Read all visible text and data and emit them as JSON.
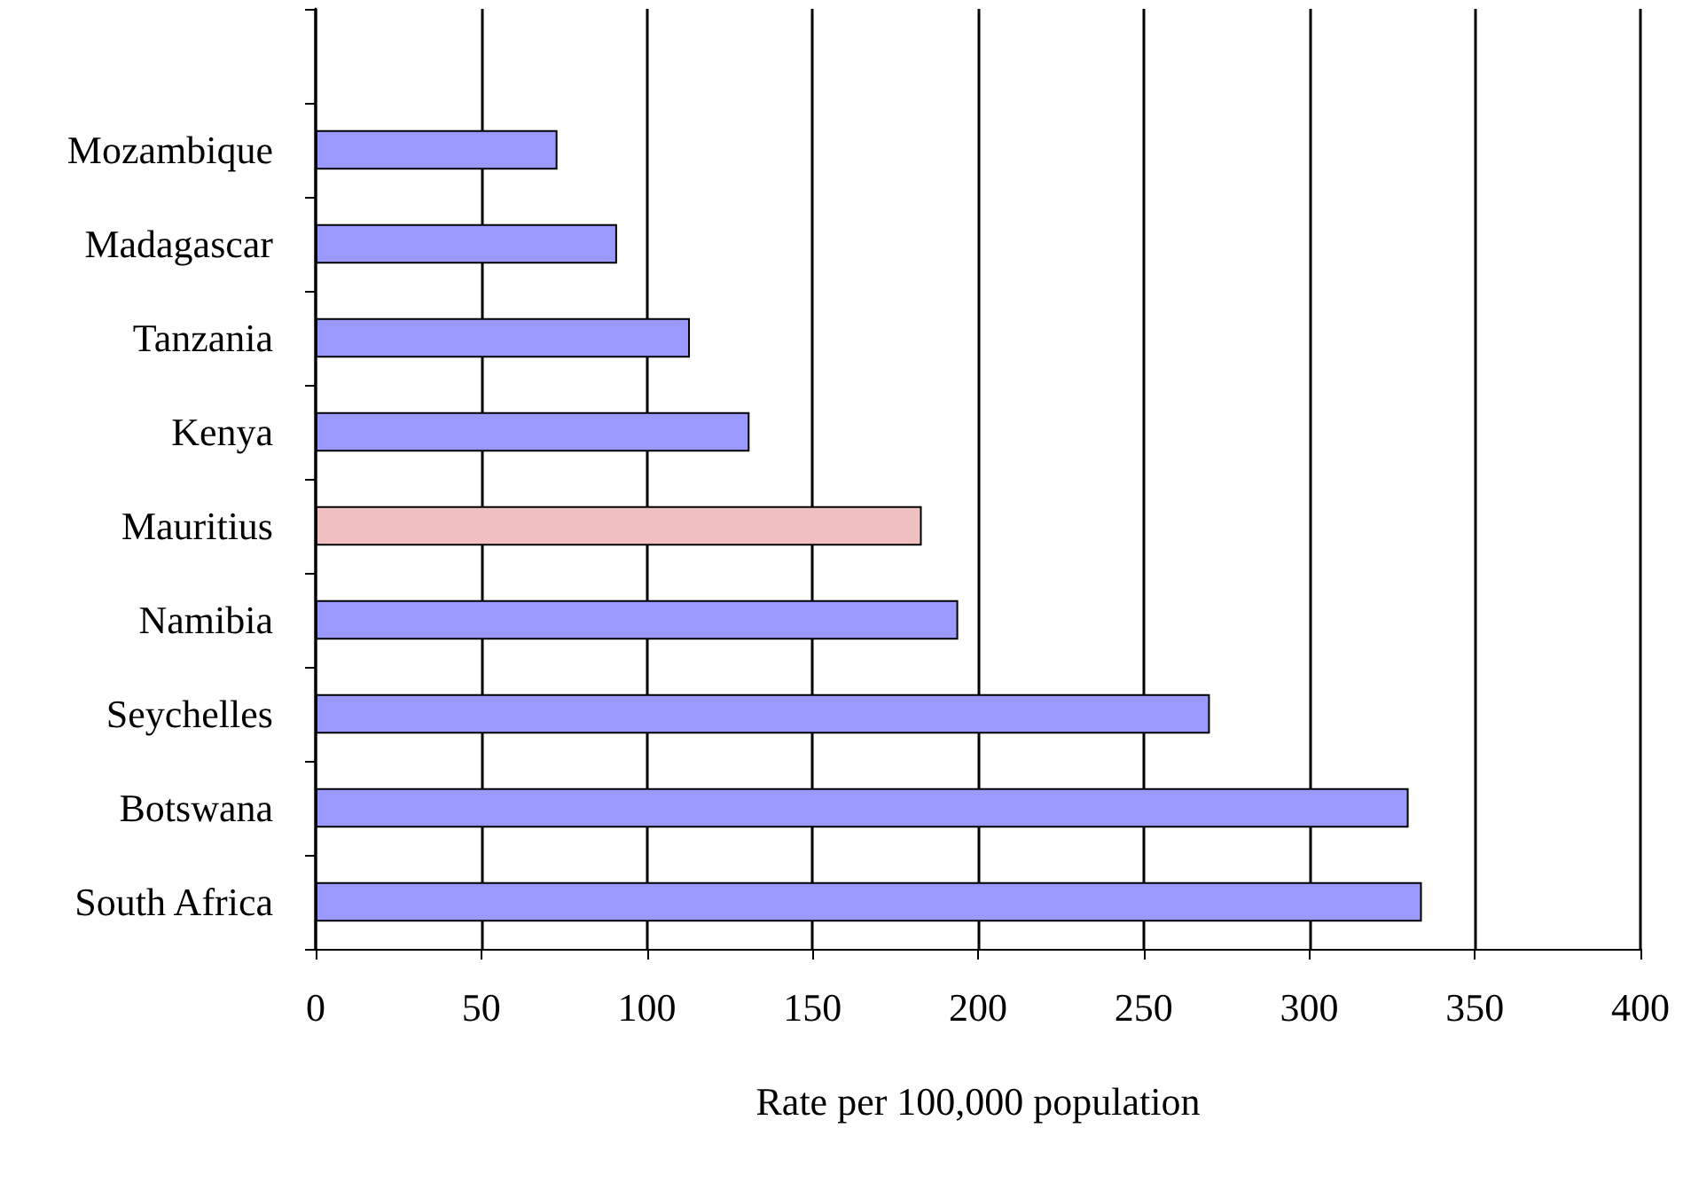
{
  "chart_data": {
    "type": "bar",
    "orientation": "horizontal",
    "xlabel": "Rate per 100,000 population",
    "categories": [
      null,
      "Mozambique",
      "Madagascar",
      "Tanzania",
      "Kenya",
      "Mauritius",
      "Namibia",
      "Seychelles",
      "Botswana",
      "South Africa"
    ],
    "values": [
      null,
      73,
      91,
      113,
      131,
      183,
      194,
      270,
      330,
      334
    ],
    "colors": [
      "#9999ff",
      "#9999ff",
      "#9999ff",
      "#9999ff",
      "#9999ff",
      "#f0c0c0",
      "#9999ff",
      "#9999ff",
      "#9999ff",
      "#9999ff"
    ],
    "xlim": [
      0,
      400
    ],
    "xticks": [
      0,
      50,
      100,
      150,
      200,
      250,
      300,
      350,
      400
    ],
    "grid": "x"
  }
}
